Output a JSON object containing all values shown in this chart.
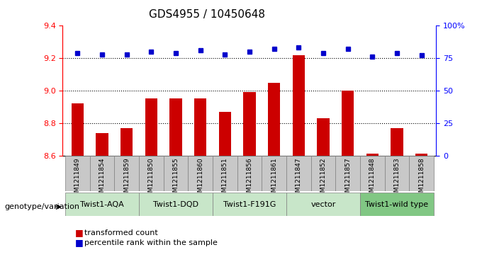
{
  "title": "GDS4955 / 10450648",
  "samples": [
    "GSM1211849",
    "GSM1211854",
    "GSM1211859",
    "GSM1211850",
    "GSM1211855",
    "GSM1211860",
    "GSM1211851",
    "GSM1211856",
    "GSM1211861",
    "GSM1211847",
    "GSM1211852",
    "GSM1211857",
    "GSM1211848",
    "GSM1211853",
    "GSM1211858"
  ],
  "bar_values": [
    8.92,
    8.74,
    8.77,
    8.95,
    8.95,
    8.95,
    8.87,
    8.99,
    9.05,
    9.22,
    8.83,
    9.0,
    8.61,
    8.77,
    8.61
  ],
  "dot_values": [
    79,
    78,
    78,
    80,
    79,
    81,
    78,
    80,
    82,
    83,
    79,
    82,
    76,
    79,
    77
  ],
  "groups": [
    {
      "label": "Twist1-AQA",
      "start": 0,
      "end": 2,
      "color": "#c8e6c9"
    },
    {
      "label": "Twist1-DQD",
      "start": 3,
      "end": 5,
      "color": "#c8e6c9"
    },
    {
      "label": "Twist1-F191G",
      "start": 6,
      "end": 8,
      "color": "#c8e6c9"
    },
    {
      "label": "vector",
      "start": 9,
      "end": 11,
      "color": "#c8e6c9"
    },
    {
      "label": "Twist1-wild type",
      "start": 12,
      "end": 14,
      "color": "#81c784"
    }
  ],
  "ylim_left": [
    8.6,
    9.4
  ],
  "ylim_right": [
    0,
    100
  ],
  "yticks_left": [
    8.6,
    8.8,
    9.0,
    9.2,
    9.4
  ],
  "yticks_right": [
    0,
    25,
    50,
    75,
    100
  ],
  "bar_color": "#cc0000",
  "dot_color": "#0000cc",
  "sample_box_color": "#c8c8c8",
  "legend_bar_label": "transformed count",
  "legend_dot_label": "percentile rank within the sample",
  "genotype_label": "genotype/variation"
}
